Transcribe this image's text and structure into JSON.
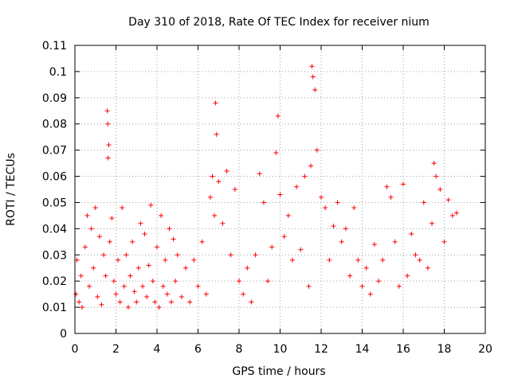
{
  "chart_data": {
    "type": "scatter",
    "title": "Day 310 of 2018, Rate Of TEC Index for receiver nium",
    "xlabel": "GPS time / hours",
    "ylabel": "ROTI / TECUs",
    "xlim": [
      0,
      20
    ],
    "ylim": [
      0,
      0.11
    ],
    "xticks": [
      0,
      2,
      4,
      6,
      8,
      10,
      12,
      14,
      16,
      18,
      20
    ],
    "yticks": [
      0,
      0.01,
      0.02,
      0.03,
      0.04,
      0.05,
      0.06,
      0.07,
      0.08,
      0.09,
      0.1,
      0.11
    ],
    "xtick_labels": [
      "0",
      "2",
      "4",
      "6",
      "8",
      "10",
      "12",
      "14",
      "16",
      "18",
      "20"
    ],
    "ytick_labels": [
      "0",
      "0.01",
      "0.02",
      "0.03",
      "0.04",
      "0.05",
      "0.06",
      "0.07",
      "0.08",
      "0.09",
      "0.1",
      "0.11"
    ],
    "grid": true,
    "marker": "+",
    "marker_color": "#ff0000",
    "data_extent_hours": [
      0,
      18.6
    ],
    "series": [
      {
        "name": "ROTI",
        "x_hours": [
          0.05,
          0.1,
          0.2,
          0.3,
          0.35,
          0.5,
          0.6,
          0.7,
          0.8,
          0.9,
          1.0,
          1.1,
          1.2,
          1.3,
          1.4,
          1.5,
          1.58,
          1.6,
          1.62,
          1.65,
          1.7,
          1.8,
          1.9,
          2.0,
          2.1,
          2.2,
          2.3,
          2.4,
          2.5,
          2.6,
          2.7,
          2.8,
          2.9,
          3.0,
          3.1,
          3.2,
          3.3,
          3.4,
          3.5,
          3.6,
          3.7,
          3.8,
          3.9,
          4.0,
          4.1,
          4.2,
          4.3,
          4.4,
          4.5,
          4.6,
          4.7,
          4.8,
          4.9,
          5.0,
          5.2,
          5.4,
          5.6,
          5.8,
          6.0,
          6.2,
          6.4,
          6.6,
          6.7,
          6.8,
          6.85,
          6.9,
          7.0,
          7.2,
          7.4,
          7.6,
          7.8,
          8.0,
          8.2,
          8.4,
          8.6,
          8.8,
          9.0,
          9.2,
          9.4,
          9.6,
          9.8,
          9.9,
          10.0,
          10.2,
          10.4,
          10.6,
          10.8,
          11.0,
          11.2,
          11.4,
          11.5,
          11.55,
          11.6,
          11.7,
          11.8,
          12.0,
          12.2,
          12.4,
          12.6,
          12.8,
          13.0,
          13.2,
          13.4,
          13.6,
          13.8,
          14.0,
          14.2,
          14.4,
          14.6,
          14.8,
          15.0,
          15.2,
          15.4,
          15.6,
          15.8,
          16.0,
          16.2,
          16.4,
          16.6,
          16.8,
          17.0,
          17.2,
          17.4,
          17.5,
          17.6,
          17.8,
          18.0,
          18.2,
          18.4,
          18.6
        ],
        "roti_tecu": [
          0.015,
          0.028,
          0.012,
          0.022,
          0.01,
          0.033,
          0.045,
          0.018,
          0.04,
          0.025,
          0.048,
          0.014,
          0.037,
          0.011,
          0.03,
          0.022,
          0.085,
          0.08,
          0.067,
          0.072,
          0.035,
          0.044,
          0.02,
          0.015,
          0.028,
          0.012,
          0.048,
          0.018,
          0.03,
          0.01,
          0.022,
          0.035,
          0.016,
          0.012,
          0.025,
          0.042,
          0.018,
          0.038,
          0.014,
          0.026,
          0.049,
          0.02,
          0.012,
          0.033,
          0.01,
          0.045,
          0.018,
          0.028,
          0.015,
          0.04,
          0.012,
          0.036,
          0.02,
          0.03,
          0.014,
          0.025,
          0.012,
          0.028,
          0.018,
          0.035,
          0.015,
          0.052,
          0.06,
          0.045,
          0.088,
          0.076,
          0.058,
          0.042,
          0.062,
          0.03,
          0.055,
          0.02,
          0.015,
          0.025,
          0.012,
          0.03,
          0.061,
          0.05,
          0.02,
          0.033,
          0.069,
          0.083,
          0.053,
          0.037,
          0.045,
          0.028,
          0.056,
          0.032,
          0.06,
          0.018,
          0.064,
          0.102,
          0.098,
          0.093,
          0.07,
          0.052,
          0.048,
          0.028,
          0.041,
          0.05,
          0.035,
          0.04,
          0.022,
          0.048,
          0.028,
          0.018,
          0.025,
          0.015,
          0.034,
          0.02,
          0.028,
          0.056,
          0.052,
          0.035,
          0.018,
          0.057,
          0.022,
          0.038,
          0.03,
          0.028,
          0.05,
          0.025,
          0.042,
          0.065,
          0.06,
          0.055,
          0.035,
          0.051,
          0.045,
          0.046
        ]
      }
    ]
  }
}
